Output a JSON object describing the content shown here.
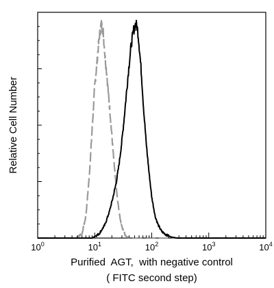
{
  "chart_data": {
    "type": "line",
    "title": "",
    "xlabel": "Purified  AGT,  with negative control",
    "xlabel_line2": "( FITC second step)",
    "ylabel": "Relative Cell Number",
    "x_scale": "log",
    "xlim": [
      1,
      10000
    ],
    "ylim": [
      0,
      1
    ],
    "x_ticks": [
      {
        "base": "10",
        "exp": "0",
        "value": 1
      },
      {
        "base": "10",
        "exp": "1",
        "value": 10
      },
      {
        "base": "10",
        "exp": "2",
        "value": 100
      },
      {
        "base": "10",
        "exp": "3",
        "value": 1000
      },
      {
        "base": "10",
        "exp": "4",
        "value": 10000
      }
    ],
    "grid": false,
    "legend": "none",
    "series": [
      {
        "color": "#999999",
        "style": "dashed",
        "x": [
          4.5,
          6,
          7,
          8,
          9,
          10,
          11,
          12,
          13,
          14,
          15,
          17,
          19,
          21,
          23,
          25,
          28,
          31,
          35,
          40
        ],
        "y": [
          0.0,
          0.02,
          0.1,
          0.28,
          0.5,
          0.7,
          0.82,
          0.93,
          0.99,
          0.96,
          0.86,
          0.7,
          0.55,
          0.4,
          0.28,
          0.18,
          0.09,
          0.04,
          0.01,
          0.0
        ]
      },
      {
        "color": "#000000",
        "style": "solid",
        "x": [
          9,
          12,
          15,
          18,
          21,
          24,
          27,
          30,
          33,
          36,
          40,
          44,
          48,
          52,
          55,
          58,
          62,
          66,
          72,
          80,
          90,
          100,
          115,
          130,
          150,
          180,
          220,
          280
        ],
        "y": [
          0.0,
          0.02,
          0.06,
          0.12,
          0.19,
          0.26,
          0.35,
          0.45,
          0.56,
          0.67,
          0.8,
          0.9,
          0.96,
          0.99,
          0.98,
          0.94,
          0.85,
          0.76,
          0.6,
          0.44,
          0.3,
          0.19,
          0.1,
          0.06,
          0.03,
          0.015,
          0.005,
          0.0
        ]
      }
    ]
  }
}
